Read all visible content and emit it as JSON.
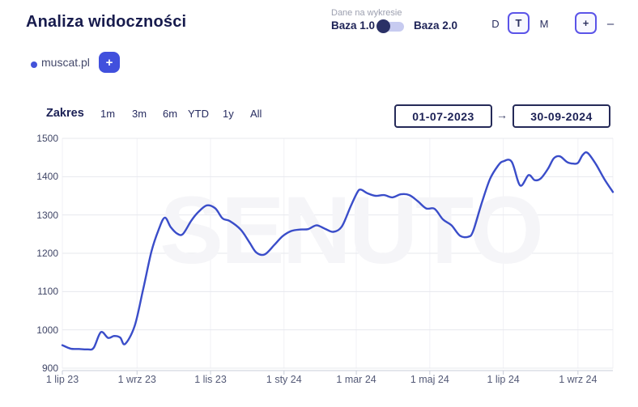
{
  "header": {
    "title": "Analiza widoczności"
  },
  "dataset_toggle": {
    "label": "Dane na wykresie",
    "left_option": "Baza 1.0",
    "right_option": "Baza 2.0",
    "selected": "Baza 1.0"
  },
  "interval": {
    "options": [
      "D",
      "T",
      "M"
    ],
    "selected": "T"
  },
  "zoom_controls": {
    "zoom_in": "+",
    "zoom_out": "–"
  },
  "legend": {
    "domain": "muscat.pl",
    "add_button": "+",
    "dot_color": "#4353d9"
  },
  "range": {
    "label": "Zakres",
    "options": [
      "1m",
      "3m",
      "6m",
      "YTD",
      "1y",
      "All"
    ],
    "date_from": "01-07-2023",
    "arrow": "→",
    "date_to": "30-09-2024"
  },
  "watermark": "SENUTO",
  "colors": {
    "line": "#3a4dc9",
    "accent_border": "#5b54e8",
    "accent_button": "#4150dd",
    "navy": "#1b2055",
    "gridline": "#e7e8ee",
    "v_gridline": "#f1f1f6",
    "axis": "#c9ced9",
    "watermark": "#f5f5f8"
  },
  "chart_data": {
    "type": "line",
    "title": "Analiza widoczności",
    "xlabel": "",
    "ylabel": "",
    "ylim": [
      900,
      1500
    ],
    "y_ticks": [
      1500,
      1400,
      1300,
      1200,
      1100,
      1000,
      900
    ],
    "x_span_days": 457,
    "x_range": [
      "01-07-2023",
      "30-09-2024"
    ],
    "x_ticks": [
      {
        "day": 0,
        "label": "1 lip 23"
      },
      {
        "day": 62,
        "label": "1 wrz 23"
      },
      {
        "day": 123,
        "label": "1 lis 23"
      },
      {
        "day": 184,
        "label": "1 sty 24"
      },
      {
        "day": 244,
        "label": "1 mar 24"
      },
      {
        "day": 305,
        "label": "1 maj 24"
      },
      {
        "day": 366,
        "label": "1 lip 24"
      },
      {
        "day": 428,
        "label": "1 wrz 24"
      }
    ],
    "grid": true,
    "legend_position": "top-left",
    "series": [
      {
        "name": "muscat.pl",
        "color": "#3a4dc9",
        "points": [
          [
            0,
            960
          ],
          [
            7,
            951
          ],
          [
            14,
            950
          ],
          [
            21,
            949
          ],
          [
            26,
            953
          ],
          [
            32,
            994
          ],
          [
            38,
            979
          ],
          [
            43,
            984
          ],
          [
            48,
            980
          ],
          [
            52,
            963
          ],
          [
            60,
            1010
          ],
          [
            67,
            1105
          ],
          [
            74,
            1205
          ],
          [
            80,
            1262
          ],
          [
            85,
            1293
          ],
          [
            90,
            1268
          ],
          [
            95,
            1252
          ],
          [
            100,
            1250
          ],
          [
            107,
            1285
          ],
          [
            113,
            1308
          ],
          [
            120,
            1325
          ],
          [
            127,
            1317
          ],
          [
            133,
            1291
          ],
          [
            139,
            1284
          ],
          [
            148,
            1262
          ],
          [
            155,
            1230
          ],
          [
            161,
            1202
          ],
          [
            168,
            1197
          ],
          [
            176,
            1222
          ],
          [
            183,
            1245
          ],
          [
            190,
            1258
          ],
          [
            197,
            1262
          ],
          [
            204,
            1263
          ],
          [
            211,
            1273
          ],
          [
            218,
            1264
          ],
          [
            225,
            1256
          ],
          [
            232,
            1270
          ],
          [
            239,
            1320
          ],
          [
            245,
            1360
          ],
          [
            248,
            1366
          ],
          [
            253,
            1357
          ],
          [
            260,
            1350
          ],
          [
            267,
            1352
          ],
          [
            274,
            1346
          ],
          [
            281,
            1354
          ],
          [
            288,
            1352
          ],
          [
            295,
            1336
          ],
          [
            302,
            1317
          ],
          [
            309,
            1316
          ],
          [
            316,
            1288
          ],
          [
            323,
            1273
          ],
          [
            330,
            1246
          ],
          [
            337,
            1243
          ],
          [
            341,
            1258
          ],
          [
            348,
            1330
          ],
          [
            355,
            1394
          ],
          [
            362,
            1430
          ],
          [
            366,
            1440
          ],
          [
            373,
            1439
          ],
          [
            380,
            1377
          ],
          [
            387,
            1404
          ],
          [
            392,
            1391
          ],
          [
            397,
            1395
          ],
          [
            403,
            1420
          ],
          [
            408,
            1448
          ],
          [
            413,
            1453
          ],
          [
            419,
            1438
          ],
          [
            424,
            1434
          ],
          [
            428,
            1436
          ],
          [
            432,
            1457
          ],
          [
            436,
            1462
          ],
          [
            443,
            1432
          ],
          [
            450,
            1393
          ],
          [
            457,
            1360
          ]
        ]
      }
    ]
  }
}
